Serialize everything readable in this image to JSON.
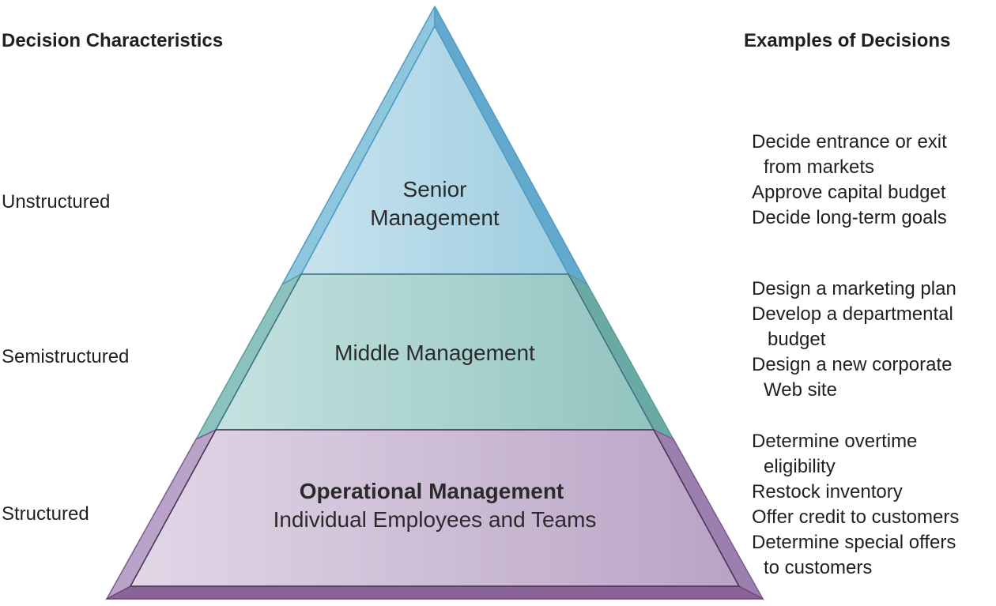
{
  "headers": {
    "left": "Decision Characteristics",
    "right": "Examples of Decisions"
  },
  "characteristics": [
    "Unstructured",
    "Semistructured",
    "Structured"
  ],
  "tiers": {
    "senior": {
      "line1": "Senior",
      "line2": "Management"
    },
    "middle": {
      "label": "Middle Management"
    },
    "operational": {
      "title": "Operational Management",
      "subtitle": "Individual Employees and Teams"
    }
  },
  "examples": {
    "senior": [
      {
        "line1": "Decide entrance or exit",
        "line2": "from markets"
      },
      {
        "line1": "Approve capital budget"
      },
      {
        "line1": "Decide long-term goals"
      }
    ],
    "middle": [
      {
        "line1": "Design a marketing plan"
      },
      {
        "line1": "Develop a departmental",
        "line2": "budget"
      },
      {
        "line1": "Design a new corporate",
        "line2": "Web site"
      }
    ],
    "operational": [
      {
        "line1": "Determine overtime",
        "line2": "eligibility"
      },
      {
        "line1": "Restock inventory"
      },
      {
        "line1": "Offer credit to customers"
      },
      {
        "line1": "Determine special offers",
        "line2": "to customers"
      }
    ]
  },
  "colors": {
    "senior_face_light": "#c8e3ee",
    "senior_face_dark": "#9dcde1",
    "senior_edge": "#4f9cc4",
    "middle_face_light": "#c4e2df",
    "middle_face_dark": "#93c4c0",
    "middle_edge": "#5a9e99",
    "operational_face_light": "#e1d7e6",
    "operational_face_dark": "#b9a3c5",
    "operational_edge": "#7c5b8d"
  }
}
